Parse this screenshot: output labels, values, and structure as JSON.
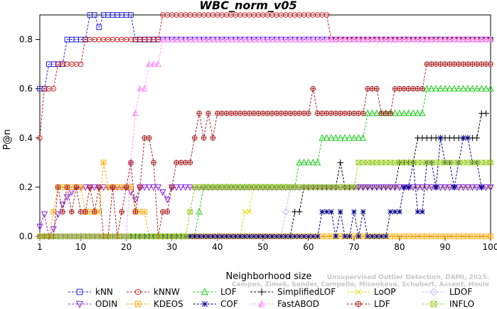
{
  "chart_data": {
    "type": "line",
    "title": "WBC_norm_v05",
    "xlabel": "Neighborhood size",
    "ylabel": "P@n",
    "xlim": [
      1,
      100
    ],
    "ylim": [
      0,
      0.9
    ],
    "xticks": [
      1,
      10,
      20,
      30,
      40,
      50,
      60,
      70,
      80,
      90,
      100
    ],
    "yticks": [
      0.0,
      0.2,
      0.4,
      0.6,
      0.8
    ],
    "legend_position": "bottom",
    "watermark": [
      "Campos, Zimek, Sander, Campello, Micenkova, Schubert, Assent, Houle",
      "Unsupervised Outlier Detection, DAMI, 2015."
    ],
    "series": [
      {
        "name": "kNN",
        "color": "#2222dd",
        "marker": "square",
        "points": [
          [
            1,
            0.6
          ],
          [
            3,
            0.7
          ],
          [
            7,
            0.8
          ],
          [
            9,
            0.8
          ],
          [
            12,
            0.9
          ],
          [
            14,
            0.85
          ],
          [
            15,
            0.9
          ],
          [
            20,
            0.9
          ],
          [
            22,
            0.8
          ],
          [
            100,
            0.8
          ]
        ]
      },
      {
        "name": "kNNW",
        "color": "#cc2222",
        "marker": "circle",
        "points": [
          [
            1,
            0.4
          ],
          [
            2,
            0.6
          ],
          [
            4,
            0.6
          ],
          [
            5,
            0.7
          ],
          [
            10,
            0.7
          ],
          [
            11,
            0.8
          ],
          [
            27,
            0.8
          ],
          [
            28,
            0.9
          ],
          [
            63,
            0.9
          ],
          [
            65,
            0.8
          ],
          [
            100,
            0.8
          ]
        ]
      },
      {
        "name": "LOF",
        "color": "#22cc22",
        "marker": "triangle",
        "points": [
          [
            1,
            0.0
          ],
          [
            35,
            0.0
          ],
          [
            36,
            0.1
          ],
          [
            37,
            0.2
          ],
          [
            57,
            0.2
          ],
          [
            58,
            0.3
          ],
          [
            62,
            0.3
          ],
          [
            63,
            0.4
          ],
          [
            72,
            0.4
          ],
          [
            73,
            0.5
          ],
          [
            85,
            0.5
          ],
          [
            86,
            0.6
          ],
          [
            100,
            0.6
          ]
        ]
      },
      {
        "name": "SimplifiedLOF",
        "color": "#000000",
        "marker": "plus",
        "points": [
          [
            1,
            0.0
          ],
          [
            36,
            0.0
          ],
          [
            56,
            0.0
          ],
          [
            57,
            0.1
          ],
          [
            58,
            0.1
          ],
          [
            59,
            0.2
          ],
          [
            66,
            0.2
          ],
          [
            67,
            0.3
          ],
          [
            68,
            0.2
          ],
          [
            79,
            0.2
          ],
          [
            80,
            0.3
          ],
          [
            82,
            0.3
          ],
          [
            84,
            0.4
          ],
          [
            97,
            0.4
          ],
          [
            98,
            0.5
          ],
          [
            99,
            0.5
          ]
        ]
      },
      {
        "name": "LoOP",
        "color": "#dddd00",
        "marker": "x",
        "points": [
          [
            1,
            0.0
          ],
          [
            44,
            0.0
          ],
          [
            46,
            0.1
          ],
          [
            48,
            0.2
          ],
          [
            100,
            0.2
          ]
        ]
      },
      {
        "name": "LDOF",
        "color": "#bbbbff",
        "marker": "diamond",
        "points": [
          [
            1,
            0.0
          ],
          [
            54,
            0.0
          ],
          [
            55,
            0.1
          ],
          [
            56,
            0.2
          ],
          [
            100,
            0.2
          ]
        ]
      },
      {
        "name": "ODIN",
        "color": "#8822dd",
        "marker": "triangle-down",
        "points": [
          [
            1,
            0.04
          ],
          [
            2,
            0.09
          ],
          [
            3,
            0.0
          ],
          [
            4,
            0.03
          ],
          [
            5,
            0.09
          ],
          [
            6,
            0.13
          ],
          [
            7,
            0.16
          ],
          [
            8,
            0.18
          ],
          [
            9,
            0.2
          ],
          [
            20,
            0.2
          ],
          [
            21,
            0.18
          ],
          [
            22,
            0.15
          ],
          [
            23,
            0.2
          ],
          [
            27,
            0.2
          ],
          [
            28,
            0.18
          ],
          [
            29,
            0.15
          ],
          [
            30,
            0.2
          ],
          [
            100,
            0.2
          ]
        ]
      },
      {
        "name": "KDEOS",
        "color": "#ffaa00",
        "marker": "square-dot",
        "points": [
          [
            1,
            0.0
          ],
          [
            3,
            0.0
          ],
          [
            4,
            0.1
          ],
          [
            5,
            0.2
          ],
          [
            10,
            0.2
          ],
          [
            11,
            0.1
          ],
          [
            14,
            0.1
          ],
          [
            15,
            0.3
          ],
          [
            16,
            0.2
          ],
          [
            21,
            0.2
          ],
          [
            22,
            0.1
          ],
          [
            24,
            0.1
          ],
          [
            25,
            0.0
          ],
          [
            100,
            0.0
          ]
        ]
      },
      {
        "name": "COF",
        "color": "#000088",
        "marker": "star",
        "points": [
          [
            1,
            0.0
          ],
          [
            62,
            0.0
          ],
          [
            63,
            0.1
          ],
          [
            65,
            0.1
          ],
          [
            66,
            0.0
          ],
          [
            67,
            0.1
          ],
          [
            68,
            0.0
          ],
          [
            70,
            0.1
          ],
          [
            71,
            0.0
          ],
          [
            72,
            0.1
          ],
          [
            73,
            0.0
          ],
          [
            77,
            0.0
          ],
          [
            78,
            0.1
          ],
          [
            80,
            0.1
          ],
          [
            81,
            0.2
          ],
          [
            82,
            0.2
          ],
          [
            83,
            0.3
          ],
          [
            84,
            0.1
          ],
          [
            85,
            0.1
          ],
          [
            86,
            0.3
          ],
          [
            88,
            0.2
          ],
          [
            89,
            0.4
          ],
          [
            90,
            0.3
          ],
          [
            92,
            0.2
          ],
          [
            93,
            0.3
          ],
          [
            94,
            0.4
          ],
          [
            96,
            0.3
          ],
          [
            98,
            0.2
          ]
        ]
      },
      {
        "name": "FastABOD",
        "color": "#ff99ff",
        "marker": "triangle-half",
        "points": [
          [
            1,
            0.0
          ],
          [
            20,
            0.0
          ],
          [
            21,
            0.3
          ],
          [
            22,
            0.5
          ],
          [
            23,
            0.6
          ],
          [
            24,
            0.6
          ],
          [
            25,
            0.7
          ],
          [
            27,
            0.7
          ],
          [
            28,
            0.8
          ],
          [
            100,
            0.8
          ]
        ]
      },
      {
        "name": "LDF",
        "color": "#aa2222",
        "marker": "circle-plus",
        "points": [
          [
            1,
            0.0
          ],
          [
            5,
            0.2
          ],
          [
            6,
            0.1
          ],
          [
            7,
            0.2
          ],
          [
            8,
            0.1
          ],
          [
            9,
            0.2
          ],
          [
            10,
            0.1
          ],
          [
            11,
            0.1
          ],
          [
            12,
            0.2
          ],
          [
            13,
            0.1
          ],
          [
            14,
            0.2
          ],
          [
            15,
            0.0
          ],
          [
            17,
            0.2
          ],
          [
            18,
            0.0
          ],
          [
            19,
            0.1
          ],
          [
            20,
            0.2
          ],
          [
            21,
            0.3
          ],
          [
            22,
            0.1
          ],
          [
            23,
            0.2
          ],
          [
            24,
            0.4
          ],
          [
            25,
            0.4
          ],
          [
            26,
            0.3
          ],
          [
            27,
            0.0
          ],
          [
            28,
            0.1
          ],
          [
            29,
            0.1
          ],
          [
            30,
            0.2
          ],
          [
            31,
            0.3
          ],
          [
            34,
            0.3
          ],
          [
            35,
            0.4
          ],
          [
            36,
            0.5
          ],
          [
            37,
            0.4
          ],
          [
            38,
            0.5
          ],
          [
            39,
            0.4
          ],
          [
            40,
            0.5
          ],
          [
            60,
            0.5
          ],
          [
            61,
            0.6
          ],
          [
            62,
            0.5
          ],
          [
            72,
            0.5
          ],
          [
            73,
            0.6
          ],
          [
            75,
            0.6
          ],
          [
            76,
            0.5
          ],
          [
            78,
            0.5
          ],
          [
            79,
            0.6
          ],
          [
            85,
            0.6
          ],
          [
            86,
            0.7
          ],
          [
            100,
            0.7
          ]
        ]
      },
      {
        "name": "INFLO",
        "color": "#99cc22",
        "marker": "hourglass",
        "points": [
          [
            1,
            0.0
          ],
          [
            33,
            0.0
          ],
          [
            34,
            0.1
          ],
          [
            35,
            0.2
          ],
          [
            70,
            0.2
          ],
          [
            71,
            0.3
          ],
          [
            100,
            0.3
          ]
        ]
      }
    ]
  }
}
